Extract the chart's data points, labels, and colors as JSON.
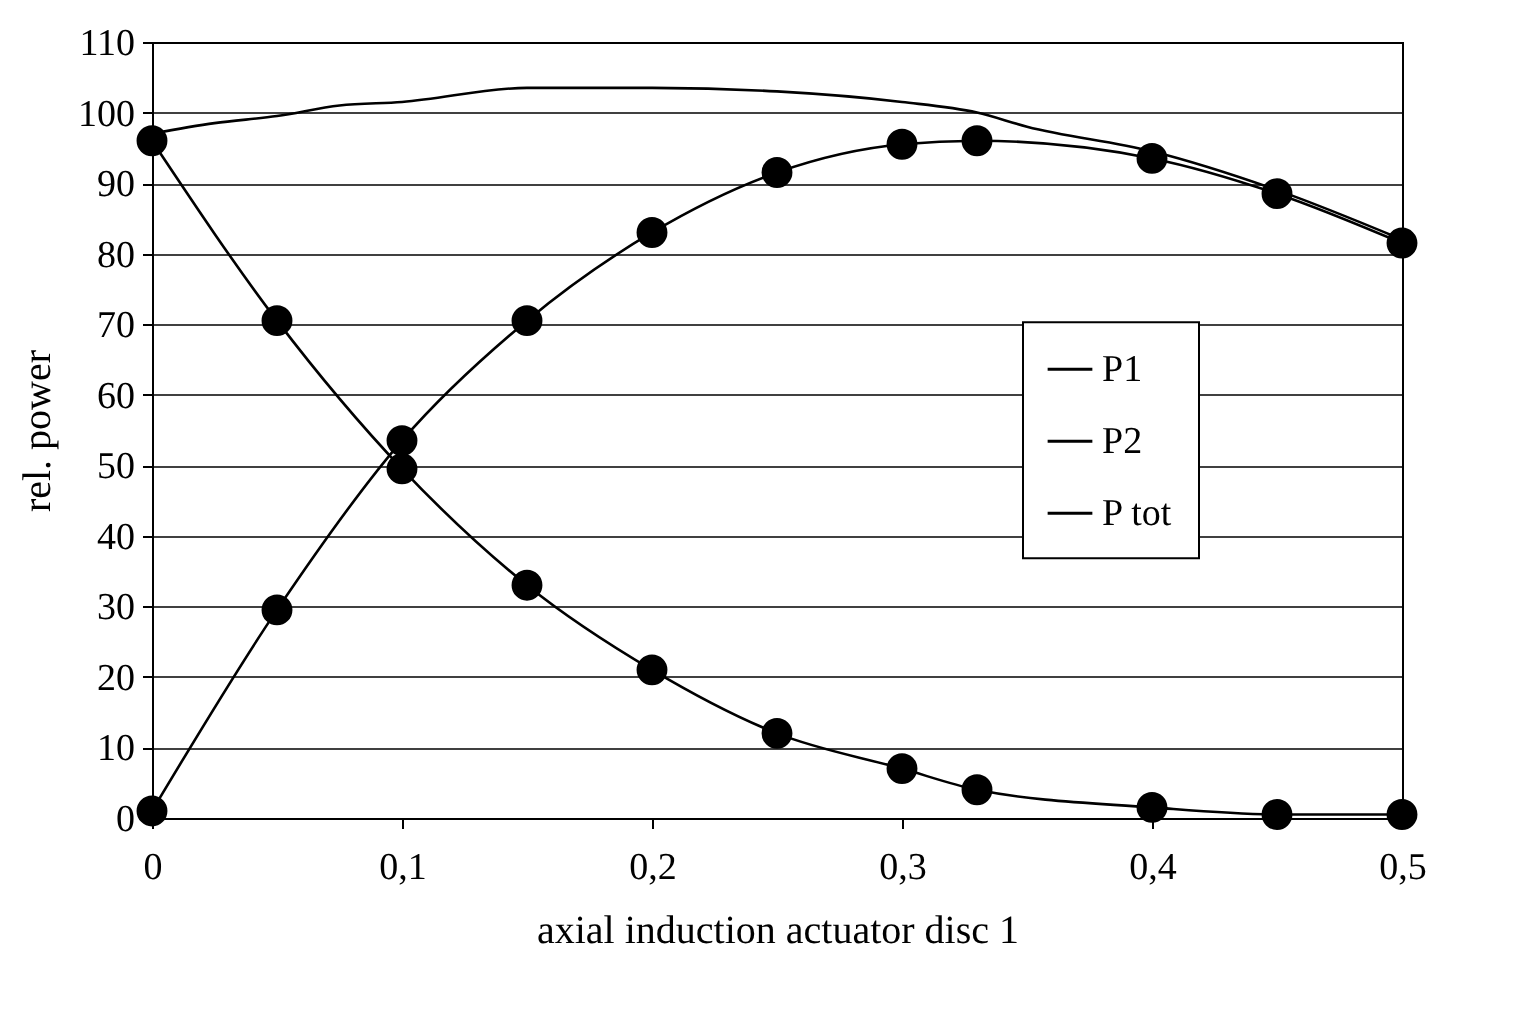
{
  "chart_data": {
    "type": "line",
    "xlabel": "axial induction actuator disc 1",
    "ylabel": "rel. power",
    "xlim": [
      0,
      0.5
    ],
    "xticks": [
      {
        "value": 0,
        "label": "0"
      },
      {
        "value": 0.1,
        "label": "0,1"
      },
      {
        "value": 0.2,
        "label": "0,2"
      },
      {
        "value": 0.3,
        "label": "0,3"
      },
      {
        "value": 0.4,
        "label": "0,4"
      },
      {
        "value": 0.5,
        "label": "0,5"
      }
    ],
    "ylim": [
      0,
      110
    ],
    "yticks": [
      0,
      10,
      20,
      30,
      40,
      50,
      60,
      70,
      80,
      90,
      100,
      110
    ],
    "grid": "y",
    "legend": "right",
    "series": [
      {
        "name": "P1",
        "color": "#000000",
        "marker": "circle",
        "x": [
          0,
          0.05,
          0.1,
          0.15,
          0.2,
          0.25,
          0.3,
          0.33,
          0.4,
          0.45,
          0.5
        ],
        "values": [
          1,
          29.5,
          53.5,
          70.5,
          83,
          91.5,
          95.5,
          96,
          93.5,
          88.5,
          81.5
        ]
      },
      {
        "name": "P2",
        "color": "#000000",
        "marker": "circle",
        "x": [
          0,
          0.05,
          0.1,
          0.15,
          0.2,
          0.25,
          0.3,
          0.33,
          0.4,
          0.45,
          0.5
        ],
        "values": [
          96,
          70.5,
          49.5,
          33,
          21,
          12,
          7,
          4,
          1.5,
          0.5,
          0.5
        ]
      },
      {
        "name": "P tot",
        "color": "#000000",
        "marker": "none",
        "x": [
          0,
          0.025,
          0.05,
          0.075,
          0.1,
          0.15,
          0.2,
          0.25,
          0.3,
          0.33,
          0.35,
          0.4,
          0.45,
          0.5
        ],
        "values": [
          97,
          98.5,
          99.5,
          101,
          101.5,
          103.5,
          103.5,
          103,
          101.5,
          100,
          98,
          94.5,
          89,
          82
        ]
      }
    ]
  }
}
